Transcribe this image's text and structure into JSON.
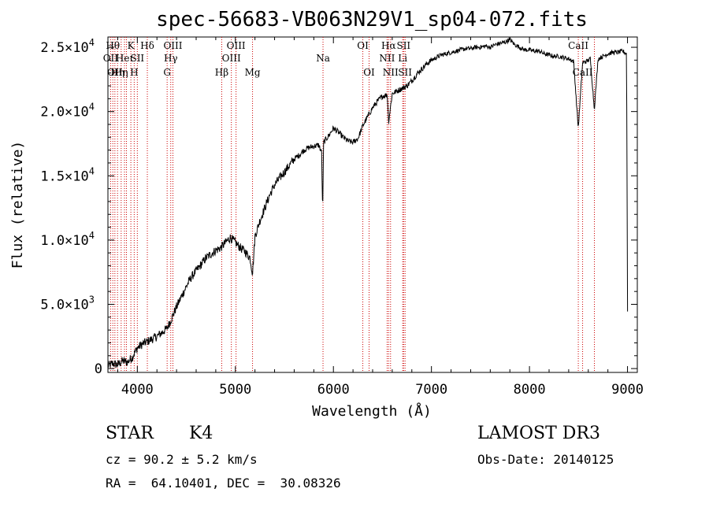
{
  "chart_data": {
    "type": "line",
    "title": "spec-56683-VB063N29V1_sp04-072.fits",
    "xlabel": "Wavelength (Å)",
    "ylabel": "Flux (relative)",
    "xlim": [
      3700,
      9100
    ],
    "ylim": [
      -300,
      25800
    ],
    "x_ticks": [
      {
        "value": 4000,
        "label": "4000"
      },
      {
        "value": 5000,
        "label": "5000"
      },
      {
        "value": 6000,
        "label": "6000"
      },
      {
        "value": 7000,
        "label": "7000"
      },
      {
        "value": 8000,
        "label": "8000"
      },
      {
        "value": 9000,
        "label": "9000"
      }
    ],
    "y_ticks": [
      {
        "value": 0,
        "mantissa": "0",
        "exp": ""
      },
      {
        "value": 5000,
        "mantissa": "5.0×10",
        "exp": "3"
      },
      {
        "value": 10000,
        "mantissa": "1.0×10",
        "exp": "4"
      },
      {
        "value": 15000,
        "mantissa": "1.5×10",
        "exp": "4"
      },
      {
        "value": 20000,
        "mantissa": "2.0×10",
        "exp": "4"
      },
      {
        "value": 25000,
        "mantissa": "2.5×10",
        "exp": "4"
      }
    ],
    "series": [
      {
        "name": "spectrum",
        "x": [
          3700,
          3750,
          3800,
          3850,
          3900,
          3950,
          4000,
          4050,
          4100,
          4150,
          4200,
          4250,
          4300,
          4350,
          4400,
          4450,
          4500,
          4550,
          4600,
          4650,
          4700,
          4750,
          4800,
          4850,
          4900,
          4950,
          5000,
          5050,
          5100,
          5150,
          5175,
          5200,
          5250,
          5300,
          5350,
          5400,
          5450,
          5500,
          5550,
          5600,
          5650,
          5700,
          5750,
          5800,
          5850,
          5880,
          5890,
          5900,
          5950,
          6000,
          6050,
          6100,
          6150,
          6200,
          6250,
          6300,
          6350,
          6400,
          6450,
          6500,
          6550,
          6563,
          6600,
          6650,
          6700,
          6750,
          6800,
          6850,
          6900,
          6950,
          7000,
          7050,
          7100,
          7150,
          7200,
          7250,
          7300,
          7350,
          7400,
          7450,
          7500,
          7550,
          7600,
          7650,
          7700,
          7750,
          7800,
          7850,
          7900,
          7950,
          8000,
          8050,
          8100,
          8150,
          8200,
          8250,
          8300,
          8350,
          8400,
          8450,
          8498,
          8542,
          8580,
          8620,
          8662,
          8700,
          8750,
          8800,
          8850,
          8900,
          8950,
          8990,
          9000
        ],
        "y": [
          200,
          400,
          300,
          600,
          500,
          900,
          1600,
          1900,
          2100,
          2300,
          2500,
          2800,
          3100,
          3900,
          4800,
          5600,
          6400,
          7100,
          7600,
          8100,
          8600,
          8900,
          9200,
          9400,
          9800,
          10200,
          9800,
          9400,
          9100,
          8600,
          7400,
          10300,
          11500,
          12500,
          13500,
          14300,
          14800,
          15300,
          15800,
          16300,
          16600,
          17000,
          17200,
          17300,
          17400,
          16800,
          12000,
          17600,
          18100,
          18700,
          18400,
          18000,
          17700,
          17600,
          17900,
          18900,
          19600,
          20300,
          20800,
          21200,
          21300,
          19200,
          21400,
          21600,
          21800,
          22000,
          22400,
          22900,
          23300,
          23700,
          24000,
          24200,
          24400,
          24500,
          24600,
          24700,
          24800,
          24900,
          24900,
          25000,
          25000,
          25100,
          25000,
          25200,
          25300,
          25400,
          25600,
          25200,
          25000,
          24800,
          24800,
          24700,
          24700,
          24500,
          24400,
          24300,
          24300,
          24200,
          24100,
          23900,
          18700,
          23800,
          23900,
          24100,
          20200,
          24100,
          24300,
          24500,
          24600,
          24600,
          24700,
          24500,
          4500
        ]
      }
    ],
    "emission_lines": [
      {
        "wavelength": 3727,
        "label": "OII",
        "row": 2
      },
      {
        "wavelength": 3750,
        "label": "Hθ",
        "row": 1
      },
      {
        "wavelength": 3771,
        "label": "OII",
        "row": 3
      },
      {
        "wavelength": 3798,
        "label": "Hη",
        "row": 3
      },
      {
        "wavelength": 3835,
        "label": "Hη",
        "row": 3
      },
      {
        "wavelength": 3869,
        "label": "Heι",
        "row": 2
      },
      {
        "wavelength": 3889,
        "label": "",
        "row": 0
      },
      {
        "wavelength": 3934,
        "label": "K",
        "row": 1
      },
      {
        "wavelength": 3968,
        "label": "H",
        "row": 3
      },
      {
        "wavelength": 4000,
        "label": "SII",
        "row": 2
      },
      {
        "wavelength": 4102,
        "label": "Hδ",
        "row": 1
      },
      {
        "wavelength": 4304,
        "label": "G",
        "row": 3
      },
      {
        "wavelength": 4341,
        "label": "Hγ",
        "row": 2
      },
      {
        "wavelength": 4363,
        "label": "OIII",
        "row": 1
      },
      {
        "wavelength": 4861,
        "label": "Hβ",
        "row": 3
      },
      {
        "wavelength": 4959,
        "label": "OIII",
        "row": 2
      },
      {
        "wavelength": 5007,
        "label": "OIII",
        "row": 1
      },
      {
        "wavelength": 5175,
        "label": "Mg",
        "row": 3
      },
      {
        "wavelength": 5894,
        "label": "Na",
        "row": 2
      },
      {
        "wavelength": 6300,
        "label": "OI",
        "row": 1
      },
      {
        "wavelength": 6364,
        "label": "OI",
        "row": 3
      },
      {
        "wavelength": 6548,
        "label": "NII",
        "row": 2
      },
      {
        "wavelength": 6563,
        "label": "Hα",
        "row": 1
      },
      {
        "wavelength": 6583,
        "label": "NII",
        "row": 3
      },
      {
        "wavelength": 6707,
        "label": "Li",
        "row": 2
      },
      {
        "wavelength": 6716,
        "label": "SII",
        "row": 1
      },
      {
        "wavelength": 6731,
        "label": "SII",
        "row": 3
      },
      {
        "wavelength": 8498,
        "label": "CaII",
        "row": 1
      },
      {
        "wavelength": 8542,
        "label": "CaII",
        "row": 3
      },
      {
        "wavelength": 8662,
        "label": "",
        "row": 0
      }
    ]
  },
  "info": {
    "class": "STAR",
    "subclass": "K4",
    "survey": "LAMOST DR3",
    "cz": "cz = 90.2 ± 5.2 km/s",
    "obs_date": "Obs-Date: 20140125",
    "radec": "RA =  64.10401, DEC =  30.08326"
  }
}
